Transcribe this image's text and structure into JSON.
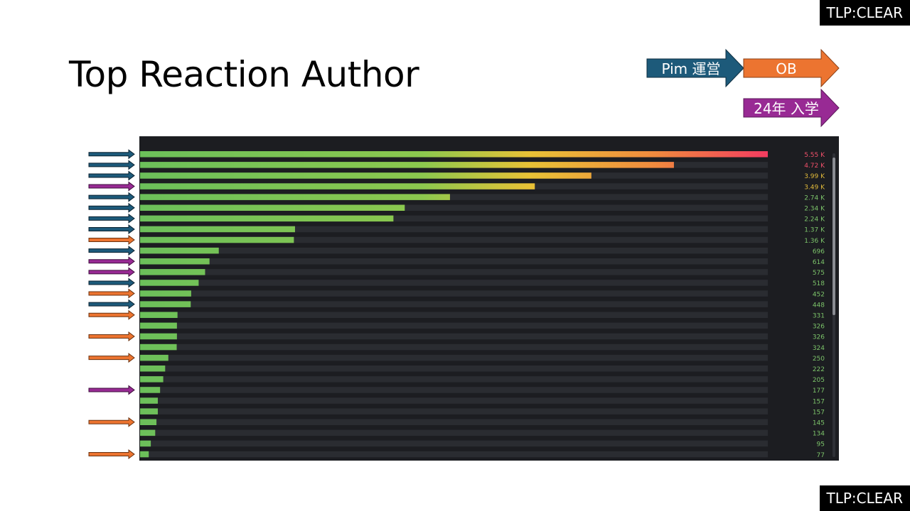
{
  "badge_top": "TLP:CLEAR",
  "badge_bottom": "TLP:CLEAR",
  "legend": [
    {
      "label": "Pim 運営",
      "color": "#1d5a7a"
    },
    {
      "label": "OB",
      "color": "#ec7430"
    },
    {
      "label": "24年 入学",
      "color": "#982a94"
    }
  ],
  "chart_data": {
    "type": "bar",
    "title": "Top Reaction Author",
    "orientation": "horizontal",
    "values": [
      5550,
      4720,
      3990,
      3490,
      2740,
      2340,
      2240,
      1370,
      1360,
      696,
      614,
      575,
      518,
      452,
      448,
      331,
      326,
      326,
      324,
      250,
      222,
      205,
      177,
      157,
      157,
      145,
      134,
      95,
      77
    ],
    "value_labels": [
      "5.55 K",
      "4.72 K",
      "3.99 K",
      "3.49 K",
      "2.74 K",
      "2.34 K",
      "2.24 K",
      "1.37 K",
      "1.36 K",
      "696",
      "614",
      "575",
      "518",
      "452",
      "448",
      "331",
      "326",
      "326",
      "324",
      "250",
      "222",
      "205",
      "177",
      "157",
      "157",
      "145",
      "134",
      "95",
      "77"
    ],
    "groups": [
      "Pim 運営",
      "Pim 運営",
      "Pim 運営",
      "24年 入学",
      "Pim 運営",
      "Pim 運営",
      "Pim 運営",
      "Pim 運営",
      "OB",
      "Pim 運営",
      "24年 入学",
      "24年 入学",
      "Pim 運営",
      "OB",
      "Pim 運営",
      "OB",
      null,
      "OB",
      null,
      "OB",
      null,
      null,
      "24年 入学",
      null,
      null,
      "OB",
      null,
      null,
      "OB"
    ],
    "xlim": [
      0,
      5550
    ],
    "grid": false,
    "legend_position": "top-right"
  }
}
